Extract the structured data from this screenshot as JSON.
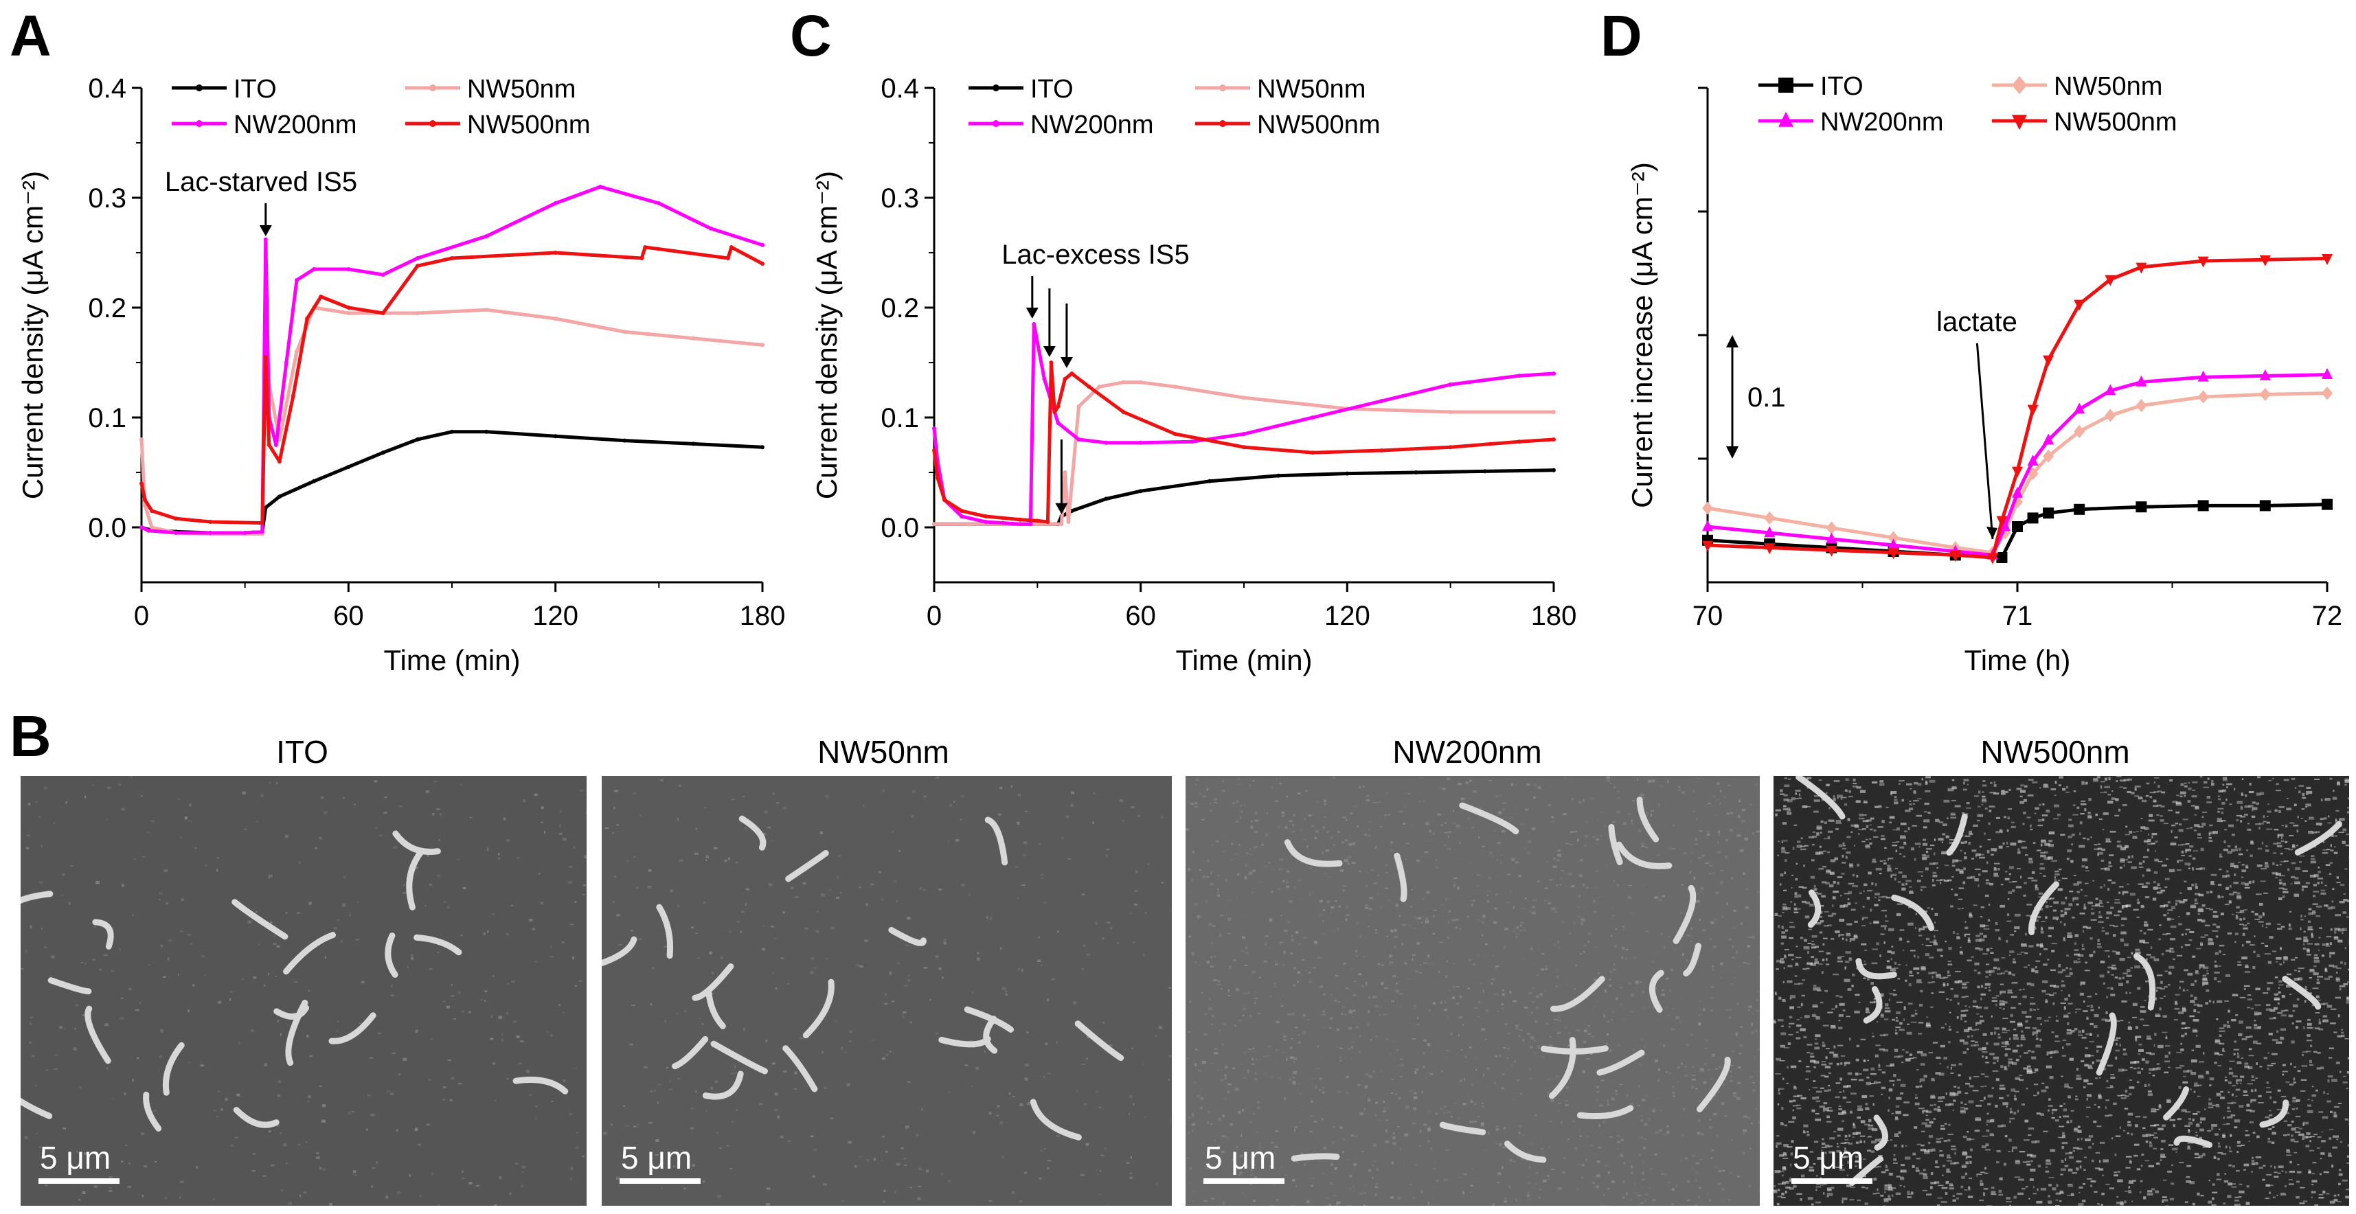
{
  "panels": {
    "A": {
      "letter": "A"
    },
    "B": {
      "letter": "B"
    },
    "C": {
      "letter": "C"
    },
    "D": {
      "letter": "D"
    }
  },
  "chart_data": [
    {
      "id": "A",
      "type": "line",
      "xlabel": "Time (min)",
      "ylabel": "Current density (μA cm⁻²)",
      "xlim": [
        0,
        180
      ],
      "ylim": [
        -0.05,
        0.4
      ],
      "xticks": [
        0,
        60,
        120,
        180
      ],
      "yticks": [
        0.0,
        0.1,
        0.2,
        0.3,
        0.4
      ],
      "xtick_labels": [
        "0",
        "60",
        "120",
        "180"
      ],
      "ytick_labels": [
        "0.0",
        "0.1",
        "0.2",
        "0.3",
        "0.4"
      ],
      "legend": [
        "ITO",
        "NW50nm",
        "NW200nm",
        "NW500nm"
      ],
      "legend_position": "top",
      "annotations": [
        {
          "text": "Lac-starved IS5",
          "x": 36,
          "y": 0.26
        }
      ],
      "series": [
        {
          "name": "ITO",
          "color": "#000000",
          "x": [
            0,
            2,
            10,
            20,
            30,
            35,
            36,
            40,
            50,
            60,
            70,
            80,
            90,
            100,
            120,
            140,
            160,
            180
          ],
          "y": [
            0.0,
            -0.002,
            -0.004,
            -0.005,
            -0.005,
            -0.004,
            0.018,
            0.028,
            0.042,
            0.055,
            0.068,
            0.08,
            0.087,
            0.087,
            0.083,
            0.079,
            0.076,
            0.073
          ]
        },
        {
          "name": "NW50nm",
          "color": "#f4a6a6",
          "x": [
            0,
            1,
            3,
            10,
            20,
            35,
            36,
            37,
            40,
            45,
            50,
            60,
            80,
            100,
            120,
            140,
            160,
            180
          ],
          "y": [
            0.08,
            0.02,
            0.0,
            -0.005,
            -0.006,
            -0.006,
            0.2,
            0.13,
            0.08,
            0.16,
            0.2,
            0.195,
            0.195,
            0.198,
            0.19,
            0.178,
            0.172,
            0.166
          ]
        },
        {
          "name": "NW200nm",
          "color": "#ff00ff",
          "x": [
            0,
            2,
            10,
            20,
            30,
            35,
            36,
            37,
            39,
            42,
            45,
            50,
            60,
            70,
            80,
            100,
            120,
            133,
            150,
            165,
            180
          ],
          "y": [
            0.0,
            -0.003,
            -0.005,
            -0.005,
            -0.005,
            -0.004,
            0.262,
            0.1,
            0.075,
            0.15,
            0.225,
            0.235,
            0.235,
            0.23,
            0.245,
            0.265,
            0.295,
            0.31,
            0.295,
            0.272,
            0.257
          ]
        },
        {
          "name": "NW500nm",
          "color": "#ee1111",
          "x": [
            0,
            1,
            3,
            10,
            20,
            35,
            36,
            37,
            40,
            44,
            48,
            52,
            60,
            70,
            80,
            90,
            120,
            145,
            146,
            170,
            171,
            180
          ],
          "y": [
            0.04,
            0.025,
            0.015,
            0.008,
            0.005,
            0.004,
            0.155,
            0.075,
            0.06,
            0.12,
            0.19,
            0.21,
            0.2,
            0.195,
            0.238,
            0.245,
            0.25,
            0.245,
            0.255,
            0.245,
            0.255,
            0.24
          ]
        }
      ]
    },
    {
      "id": "C",
      "type": "line",
      "xlabel": "Time (min)",
      "ylabel": "Current density (μA cm⁻²)",
      "xlim": [
        0,
        180
      ],
      "ylim": [
        -0.05,
        0.4
      ],
      "xticks": [
        0,
        60,
        120,
        180
      ],
      "yticks": [
        0.0,
        0.1,
        0.2,
        0.3,
        0.4
      ],
      "xtick_labels": [
        "0",
        "60",
        "120",
        "180"
      ],
      "ytick_labels": [
        "0.0",
        "0.1",
        "0.2",
        "0.3",
        "0.4"
      ],
      "legend": [
        "ITO",
        "NW50nm",
        "NW200nm",
        "NW500nm"
      ],
      "legend_position": "top",
      "annotations": [
        {
          "text": "Lac-excess IS5",
          "x": 28,
          "y": 0.19
        }
      ],
      "series": [
        {
          "name": "ITO",
          "color": "#000000",
          "x": [
            0,
            10,
            20,
            30,
            36,
            37,
            40,
            50,
            60,
            80,
            100,
            120,
            140,
            160,
            180
          ],
          "y": [
            0.003,
            0.003,
            0.003,
            0.003,
            0.003,
            0.01,
            0.015,
            0.026,
            0.033,
            0.042,
            0.047,
            0.049,
            0.05,
            0.051,
            0.052
          ]
        },
        {
          "name": "NW50nm",
          "color": "#f4a6a6",
          "x": [
            0,
            10,
            20,
            30,
            37,
            38,
            39,
            42,
            48,
            55,
            60,
            70,
            90,
            120,
            150,
            180
          ],
          "y": [
            0.003,
            0.003,
            0.003,
            0.003,
            0.003,
            0.05,
            0.005,
            0.11,
            0.128,
            0.132,
            0.132,
            0.128,
            0.118,
            0.108,
            0.105,
            0.105
          ]
        },
        {
          "name": "NW200nm",
          "color": "#ff00ff",
          "x": [
            0,
            1,
            3,
            8,
            15,
            20,
            25,
            28,
            29,
            32,
            36,
            42,
            50,
            60,
            75,
            90,
            110,
            130,
            150,
            170,
            180
          ],
          "y": [
            0.09,
            0.06,
            0.025,
            0.01,
            0.005,
            0.004,
            0.003,
            0.003,
            0.185,
            0.135,
            0.095,
            0.08,
            0.077,
            0.077,
            0.078,
            0.085,
            0.1,
            0.115,
            0.13,
            0.138,
            0.14
          ]
        },
        {
          "name": "NW500nm",
          "color": "#ee1111",
          "x": [
            0,
            1,
            3,
            8,
            15,
            25,
            30,
            33,
            34,
            35,
            36,
            38,
            40,
            45,
            55,
            70,
            90,
            110,
            130,
            150,
            170,
            180
          ],
          "y": [
            0.07,
            0.045,
            0.025,
            0.015,
            0.01,
            0.007,
            0.006,
            0.005,
            0.15,
            0.105,
            0.11,
            0.135,
            0.14,
            0.128,
            0.105,
            0.085,
            0.073,
            0.068,
            0.07,
            0.073,
            0.078,
            0.08
          ]
        }
      ]
    },
    {
      "id": "D",
      "type": "line",
      "xlabel": "Time (h)",
      "ylabel": "Current increase (μA cm⁻²)",
      "xlim": [
        70,
        72
      ],
      "ylim": [
        0,
        0.4
      ],
      "xticks": [
        70,
        71,
        72
      ],
      "xtick_labels": [
        "70",
        "71",
        "72"
      ],
      "yticks": [
        0.1,
        0.2,
        0.3
      ],
      "legend": [
        "ITO",
        "NW50nm",
        "NW200nm",
        "NW500nm"
      ],
      "legend_position": "top",
      "annotations": [
        {
          "text": "lactate",
          "x": 70.92,
          "y": 0.17
        }
      ],
      "scale_bar": {
        "label": "0.1",
        "value": 0.1
      },
      "series": [
        {
          "name": "ITO",
          "color": "#000000",
          "marker": "square",
          "x": [
            70,
            70.2,
            70.4,
            70.6,
            70.8,
            70.95,
            71.0,
            71.05,
            71.1,
            71.2,
            71.4,
            71.6,
            71.8,
            72.0
          ],
          "y": [
            0.034,
            0.031,
            0.028,
            0.025,
            0.022,
            0.02,
            0.045,
            0.052,
            0.056,
            0.059,
            0.061,
            0.062,
            0.062,
            0.063
          ]
        },
        {
          "name": "NW50nm",
          "color": "#f4b0a0",
          "marker": "diamond",
          "x": [
            70,
            70.2,
            70.4,
            70.6,
            70.8,
            70.92,
            70.96,
            71.0,
            71.05,
            71.1,
            71.2,
            71.3,
            71.4,
            71.6,
            71.8,
            72.0
          ],
          "y": [
            0.06,
            0.052,
            0.044,
            0.036,
            0.028,
            0.024,
            0.04,
            0.065,
            0.088,
            0.102,
            0.122,
            0.135,
            0.143,
            0.15,
            0.152,
            0.153
          ]
        },
        {
          "name": "NW200nm",
          "color": "#ff00ff",
          "marker": "triangle-up",
          "x": [
            70,
            70.2,
            70.4,
            70.6,
            70.8,
            70.92,
            70.96,
            71.0,
            71.05,
            71.1,
            71.2,
            71.3,
            71.4,
            71.6,
            71.8,
            72.0
          ],
          "y": [
            0.045,
            0.04,
            0.035,
            0.03,
            0.025,
            0.022,
            0.045,
            0.072,
            0.098,
            0.115,
            0.14,
            0.155,
            0.162,
            0.166,
            0.167,
            0.168
          ]
        },
        {
          "name": "NW500nm",
          "color": "#ee1111",
          "marker": "triangle-down",
          "x": [
            70,
            70.2,
            70.4,
            70.6,
            70.8,
            70.92,
            70.95,
            71.0,
            71.05,
            71.1,
            71.2,
            71.3,
            71.4,
            71.6,
            71.8,
            72.0
          ],
          "y": [
            0.03,
            0.028,
            0.026,
            0.024,
            0.022,
            0.02,
            0.05,
            0.09,
            0.14,
            0.18,
            0.225,
            0.245,
            0.255,
            0.26,
            0.261,
            0.262
          ]
        }
      ]
    }
  ],
  "sem_images": [
    {
      "title": "ITO",
      "scale_bar": "5 μm",
      "background": "#555555",
      "speckle": "low"
    },
    {
      "title": "NW50nm",
      "scale_bar": "5 μm",
      "background": "#5a5a5a",
      "speckle": "low"
    },
    {
      "title": "NW200nm",
      "scale_bar": "5 μm",
      "background": "#6a6a6a",
      "speckle": "medium"
    },
    {
      "title": "NW500nm",
      "scale_bar": "5 μm",
      "background": "#2a2a2a",
      "speckle": "high"
    }
  ]
}
